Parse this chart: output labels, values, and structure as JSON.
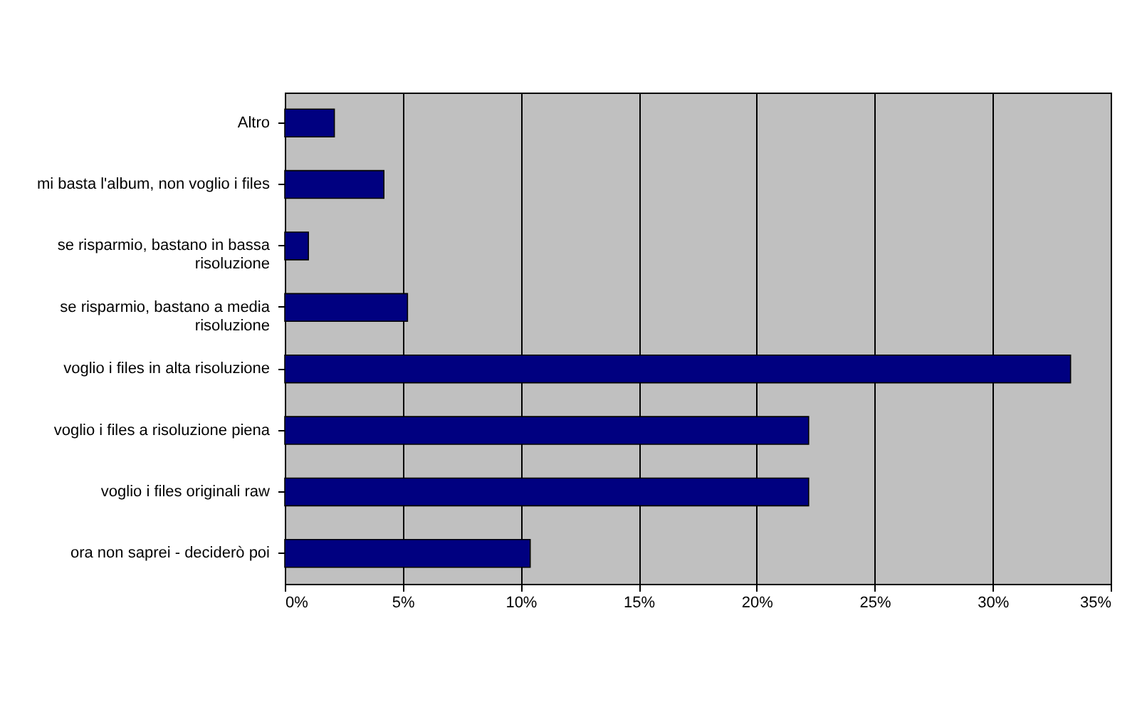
{
  "chart_data": {
    "type": "bar",
    "orientation": "horizontal",
    "categories": [
      "Altro",
      "mi basta l'album, non voglio i files",
      "se risparmio, bastano in bassa risoluzione",
      "se risparmio, bastano a media risoluzione",
      "voglio i files in alta risoluzione",
      "voglio i files a risoluzione piena",
      "voglio i files originali raw",
      "ora non saprei - deciderò poi"
    ],
    "values": [
      2.1,
      4.2,
      1.0,
      5.2,
      33.3,
      22.2,
      22.2,
      10.4
    ],
    "color": "#000080",
    "xlim": [
      0,
      35
    ],
    "xticks": [
      {
        "value": 0,
        "label": "0%"
      },
      {
        "value": 5,
        "label": "5%"
      },
      {
        "value": 10,
        "label": "10%"
      },
      {
        "value": 15,
        "label": "15%"
      },
      {
        "value": 20,
        "label": "20%"
      },
      {
        "value": 25,
        "label": "25%"
      },
      {
        "value": 30,
        "label": "30%"
      },
      {
        "value": 35,
        "label": "35%"
      }
    ],
    "grid": "x"
  }
}
